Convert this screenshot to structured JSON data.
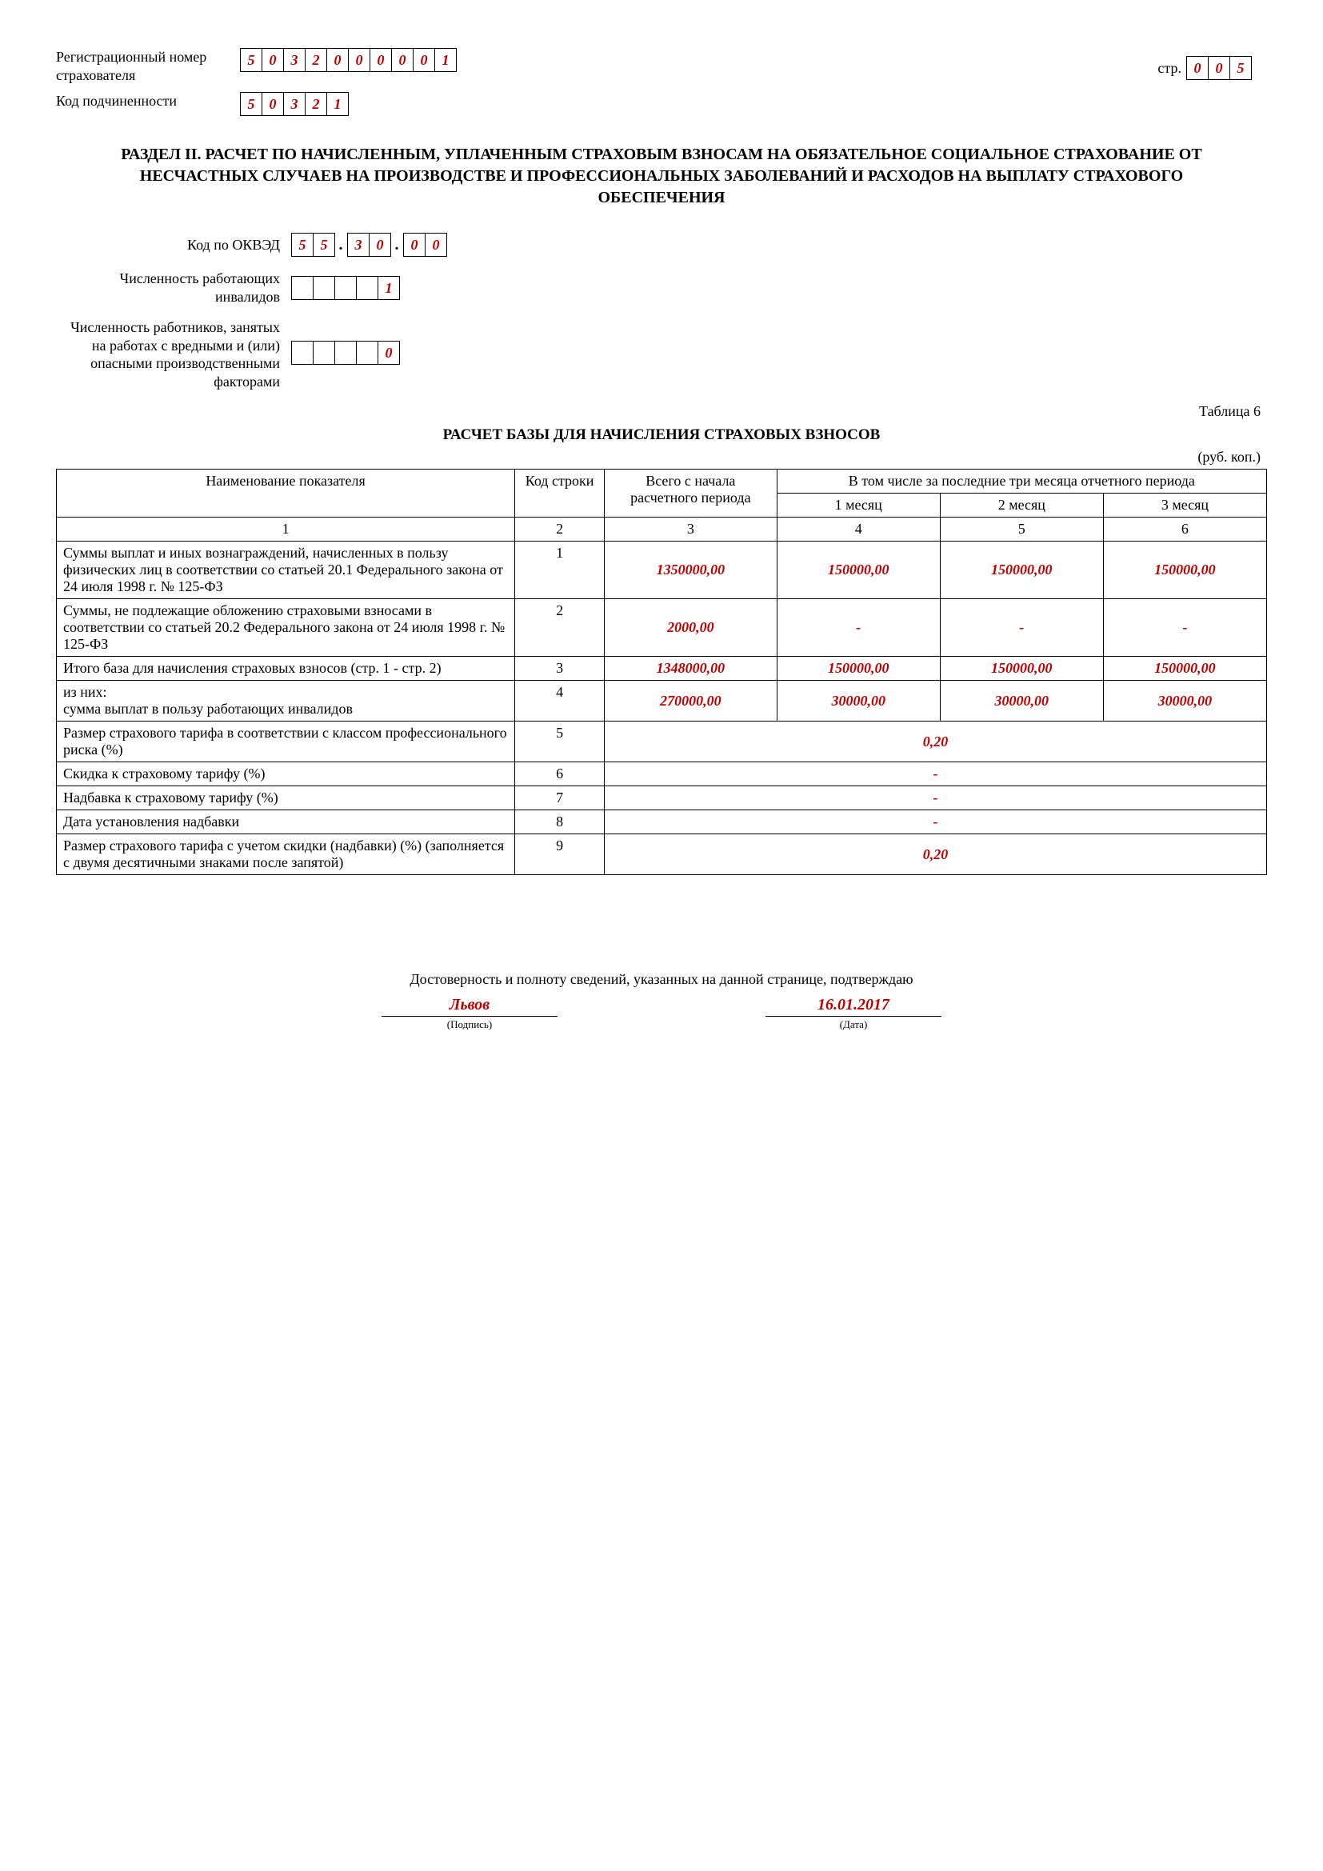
{
  "header": {
    "reg_label": "Регистрационный номер страхователя",
    "reg_digits": [
      "5",
      "0",
      "3",
      "2",
      "0",
      "0",
      "0",
      "0",
      "0",
      "1"
    ],
    "sub_label": "Код подчиненности",
    "sub_digits": [
      "5",
      "0",
      "3",
      "2",
      "1"
    ],
    "page_label": "стр.",
    "page_digits": [
      "0",
      "0",
      "5"
    ]
  },
  "section_title": "РАЗДЕЛ II. РАСЧЕТ ПО НАЧИСЛЕННЫМ, УПЛАЧЕННЫМ СТРАХОВЫМ ВЗНОСАМ НА ОБЯЗАТЕЛЬНОЕ СОЦИАЛЬНОЕ СТРАХОВАНИЕ ОТ НЕСЧАСТНЫХ СЛУЧАЕВ НА ПРОИЗВОДСТВЕ И ПРОФЕССИОНАЛЬНЫХ ЗАБОЛЕВАНИЙ И РАСХОДОВ НА ВЫПЛАТУ СТРАХОВОГО ОБЕСПЕЧЕНИЯ",
  "fields": {
    "okved_label": "Код по ОКВЭД",
    "okved_g1": [
      "5",
      "5"
    ],
    "okved_g2": [
      "3",
      "0"
    ],
    "okved_g3": [
      "0",
      "0"
    ],
    "disabled_label": "Численность работающих инвалидов",
    "disabled_digits": [
      "",
      "",
      "",
      "",
      "1"
    ],
    "hazard_label": "Численность работников, занятых на работах с вредными и (или) опасными производственными факторами",
    "hazard_digits": [
      "",
      "",
      "",
      "",
      "0"
    ]
  },
  "table": {
    "caption_right": "Таблица 6",
    "title": "РАСЧЕТ БАЗЫ ДЛЯ НАЧИСЛЕНИЯ СТРАХОВЫХ ВЗНОСОВ",
    "units": "(руб. коп.)",
    "head": {
      "c1": "Наименование показателя",
      "c2": "Код строки",
      "c3": "Всего с начала расчетного периода",
      "c_top": "В том числе за последние три месяца отчетного периода",
      "c4": "1 месяц",
      "c5": "2 месяц",
      "c6": "3 месяц",
      "n1": "1",
      "n2": "2",
      "n3": "3",
      "n4": "4",
      "n5": "5",
      "n6": "6"
    },
    "rows_full": [
      {
        "name": "Суммы выплат и иных вознаграждений, начисленных в пользу физических лиц в соответствии со статьей 20.1 Федерального закона от 24 июля 1998 г. № 125-ФЗ",
        "code": "1",
        "v3": "1350000,00",
        "v4": "150000,00",
        "v5": "150000,00",
        "v6": "150000,00"
      },
      {
        "name": "Суммы, не подлежащие обложению страховыми взносами в соответствии со статьей 20.2 Федерального закона от 24 июля 1998 г. № 125-ФЗ",
        "code": "2",
        "v3": "2000,00",
        "v4": "-",
        "v5": "-",
        "v6": "-"
      },
      {
        "name": "Итого база для начисления страховых взносов (стр. 1 - стр. 2)",
        "code": "3",
        "v3": "1348000,00",
        "v4": "150000,00",
        "v5": "150000,00",
        "v6": "150000,00"
      },
      {
        "name": "из них:\nсумма выплат в пользу работающих инвалидов",
        "code": "4",
        "v3": "270000,00",
        "v4": "30000,00",
        "v5": "30000,00",
        "v6": "30000,00"
      }
    ],
    "rows_merged": [
      {
        "name": "Размер страхового тарифа в соответствии с классом профессионального риска (%)",
        "code": "5",
        "val": "0,20"
      },
      {
        "name": "Скидка к страховому тарифу (%)",
        "code": "6",
        "val": "-"
      },
      {
        "name": "Надбавка к страховому тарифу (%)",
        "code": "7",
        "val": "-"
      },
      {
        "name": "Дата установления надбавки",
        "code": "8",
        "val": "-"
      },
      {
        "name": "Размер страхового тарифа с учетом скидки (надбавки) (%) (заполняется с двумя десятичными знаками после запятой)",
        "code": "9",
        "val": "0,20"
      }
    ]
  },
  "footer": {
    "confirm": "Достоверность и полноту сведений, указанных на данной странице, подтверждаю",
    "sig_val": "Львов",
    "sig_cap": "(Подпись)",
    "date_val": "16.01.2017",
    "date_cap": "(Дата)"
  },
  "style": {
    "accent_color": "#c00000",
    "text_color": "#000000",
    "bg_color": "#ffffff"
  }
}
